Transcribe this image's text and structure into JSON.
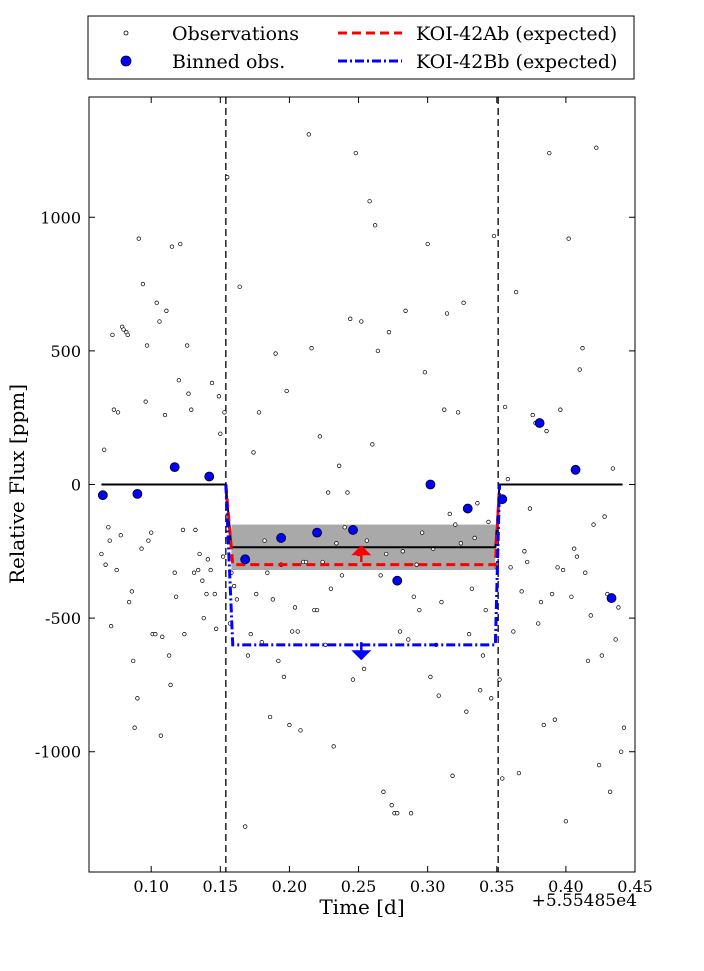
{
  "chart_data": {
    "type": "scatter",
    "title": "",
    "xlabel": "Time [d]",
    "ylabel": "Relative Flux [ppm]",
    "x_offset_label": "+5.55485e4",
    "xlim": [
      0.055,
      0.45
    ],
    "ylim": [
      -1450,
      1450
    ],
    "xticks": [
      0.1,
      0.15,
      0.2,
      0.25,
      0.3,
      0.35,
      0.4,
      0.45
    ],
    "xtick_labels": [
      "0.10",
      "0.15",
      "0.20",
      "0.25",
      "0.30",
      "0.35",
      "0.40",
      "0.45"
    ],
    "yticks": [
      1000,
      500,
      0,
      -500,
      -1000
    ],
    "ytick_labels": [
      "1000",
      "500",
      "0",
      "-500",
      "-1000"
    ],
    "grid": false,
    "legend_position": "top, above plot",
    "legend": [
      {
        "label": "Observations",
        "marker": "open-circle-small"
      },
      {
        "label": "Binned obs.",
        "marker": "filled-circle-blue"
      },
      {
        "label": "KOI-42Ab (expected)",
        "style": "dashed",
        "color": "#ff0000"
      },
      {
        "label": "KOI-42Bb (expected)",
        "style": "dash-dot",
        "color": "#0000ff"
      }
    ],
    "transit_window": [
      0.154,
      0.351
    ],
    "observations": [
      [
        0.064,
        -260
      ],
      [
        0.066,
        130
      ],
      [
        0.067,
        -300
      ],
      [
        0.069,
        -160
      ],
      [
        0.07,
        -210
      ],
      [
        0.071,
        -530
      ],
      [
        0.072,
        560
      ],
      [
        0.073,
        280
      ],
      [
        0.075,
        -320
      ],
      [
        0.076,
        270
      ],
      [
        0.078,
        -190
      ],
      [
        0.079,
        590
      ],
      [
        0.08,
        580
      ],
      [
        0.082,
        570
      ],
      [
        0.083,
        560
      ],
      [
        0.084,
        -440
      ],
      [
        0.086,
        -400
      ],
      [
        0.087,
        -660
      ],
      [
        0.088,
        -910
      ],
      [
        0.09,
        -800
      ],
      [
        0.091,
        920
      ],
      [
        0.093,
        -240
      ],
      [
        0.094,
        750
      ],
      [
        0.096,
        310
      ],
      [
        0.097,
        520
      ],
      [
        0.098,
        -210
      ],
      [
        0.1,
        -180
      ],
      [
        0.101,
        -560
      ],
      [
        0.103,
        -560
      ],
      [
        0.104,
        680
      ],
      [
        0.106,
        610
      ],
      [
        0.107,
        -940
      ],
      [
        0.108,
        -570
      ],
      [
        0.11,
        260
      ],
      [
        0.111,
        650
      ],
      [
        0.113,
        -640
      ],
      [
        0.114,
        -750
      ],
      [
        0.115,
        890
      ],
      [
        0.117,
        -330
      ],
      [
        0.118,
        -420
      ],
      [
        0.12,
        390
      ],
      [
        0.121,
        900
      ],
      [
        0.123,
        -170
      ],
      [
        0.124,
        -560
      ],
      [
        0.126,
        520
      ],
      [
        0.127,
        340
      ],
      [
        0.129,
        280
      ],
      [
        0.131,
        -330
      ],
      [
        0.132,
        -170
      ],
      [
        0.134,
        -320
      ],
      [
        0.135,
        -260
      ],
      [
        0.137,
        -360
      ],
      [
        0.138,
        -500
      ],
      [
        0.14,
        -410
      ],
      [
        0.141,
        -280
      ],
      [
        0.143,
        -320
      ],
      [
        0.144,
        380
      ],
      [
        0.146,
        -410
      ],
      [
        0.147,
        -540
      ],
      [
        0.149,
        330
      ],
      [
        0.15,
        190
      ],
      [
        0.152,
        -270
      ],
      [
        0.153,
        270
      ],
      [
        0.155,
        1150
      ],
      [
        0.157,
        -520
      ],
      [
        0.158,
        -330
      ],
      [
        0.16,
        -380
      ],
      [
        0.162,
        -430
      ],
      [
        0.164,
        740
      ],
      [
        0.166,
        -280
      ],
      [
        0.168,
        -1280
      ],
      [
        0.17,
        -640
      ],
      [
        0.172,
        -560
      ],
      [
        0.174,
        120
      ],
      [
        0.176,
        -410
      ],
      [
        0.178,
        270
      ],
      [
        0.18,
        -590
      ],
      [
        0.182,
        -210
      ],
      [
        0.184,
        -330
      ],
      [
        0.186,
        -870
      ],
      [
        0.188,
        -430
      ],
      [
        0.19,
        490
      ],
      [
        0.192,
        -660
      ],
      [
        0.194,
        -300
      ],
      [
        0.196,
        -720
      ],
      [
        0.198,
        350
      ],
      [
        0.2,
        -900
      ],
      [
        0.202,
        -550
      ],
      [
        0.204,
        -460
      ],
      [
        0.206,
        -550
      ],
      [
        0.208,
        -920
      ],
      [
        0.21,
        -290
      ],
      [
        0.212,
        -290
      ],
      [
        0.214,
        1310
      ],
      [
        0.216,
        510
      ],
      [
        0.218,
        -470
      ],
      [
        0.22,
        -470
      ],
      [
        0.222,
        180
      ],
      [
        0.224,
        -290
      ],
      [
        0.226,
        -600
      ],
      [
        0.228,
        -30
      ],
      [
        0.23,
        -390
      ],
      [
        0.232,
        -980
      ],
      [
        0.234,
        -220
      ],
      [
        0.236,
        70
      ],
      [
        0.238,
        -340
      ],
      [
        0.24,
        -160
      ],
      [
        0.242,
        -30
      ],
      [
        0.244,
        620
      ],
      [
        0.246,
        -730
      ],
      [
        0.248,
        1240
      ],
      [
        0.25,
        -260
      ],
      [
        0.252,
        610
      ],
      [
        0.254,
        -690
      ],
      [
        0.256,
        -210
      ],
      [
        0.258,
        1060
      ],
      [
        0.26,
        150
      ],
      [
        0.262,
        970
      ],
      [
        0.264,
        500
      ],
      [
        0.266,
        -340
      ],
      [
        0.268,
        -1150
      ],
      [
        0.27,
        -260
      ],
      [
        0.272,
        570
      ],
      [
        0.274,
        -1200
      ],
      [
        0.276,
        -1230
      ],
      [
        0.278,
        -1230
      ],
      [
        0.28,
        -550
      ],
      [
        0.282,
        -250
      ],
      [
        0.284,
        650
      ],
      [
        0.286,
        -580
      ],
      [
        0.288,
        -1230
      ],
      [
        0.29,
        -420
      ],
      [
        0.292,
        -300
      ],
      [
        0.294,
        -470
      ],
      [
        0.296,
        -180
      ],
      [
        0.298,
        420
      ],
      [
        0.3,
        900
      ],
      [
        0.302,
        -720
      ],
      [
        0.304,
        -240
      ],
      [
        0.306,
        -600
      ],
      [
        0.308,
        -790
      ],
      [
        0.31,
        -440
      ],
      [
        0.312,
        280
      ],
      [
        0.314,
        640
      ],
      [
        0.316,
        -110
      ],
      [
        0.318,
        -1090
      ],
      [
        0.32,
        -150
      ],
      [
        0.322,
        270
      ],
      [
        0.324,
        -220
      ],
      [
        0.326,
        680
      ],
      [
        0.328,
        -850
      ],
      [
        0.33,
        -560
      ],
      [
        0.332,
        -390
      ],
      [
        0.334,
        -200
      ],
      [
        0.336,
        -70
      ],
      [
        0.338,
        -770
      ],
      [
        0.34,
        -640
      ],
      [
        0.342,
        -470
      ],
      [
        0.344,
        -140
      ],
      [
        0.346,
        -800
      ],
      [
        0.348,
        930
      ],
      [
        0.35,
        -310
      ],
      [
        0.352,
        -730
      ],
      [
        0.354,
        -1100
      ],
      [
        0.356,
        290
      ],
      [
        0.358,
        20
      ],
      [
        0.36,
        -310
      ],
      [
        0.362,
        -550
      ],
      [
        0.364,
        720
      ],
      [
        0.366,
        -1080
      ],
      [
        0.368,
        -400
      ],
      [
        0.37,
        -250
      ],
      [
        0.372,
        -290
      ],
      [
        0.374,
        -90
      ],
      [
        0.376,
        260
      ],
      [
        0.378,
        230
      ],
      [
        0.38,
        -520
      ],
      [
        0.382,
        -440
      ],
      [
        0.384,
        -900
      ],
      [
        0.386,
        200
      ],
      [
        0.388,
        1240
      ],
      [
        0.39,
        -410
      ],
      [
        0.392,
        -880
      ],
      [
        0.394,
        -310
      ],
      [
        0.396,
        280
      ],
      [
        0.398,
        -320
      ],
      [
        0.4,
        -1260
      ],
      [
        0.402,
        920
      ],
      [
        0.404,
        -420
      ],
      [
        0.406,
        -240
      ],
      [
        0.408,
        -270
      ],
      [
        0.41,
        430
      ],
      [
        0.412,
        510
      ],
      [
        0.414,
        -330
      ],
      [
        0.416,
        -660
      ],
      [
        0.418,
        -490
      ],
      [
        0.42,
        -150
      ],
      [
        0.422,
        1260
      ],
      [
        0.424,
        -1050
      ],
      [
        0.426,
        -640
      ],
      [
        0.428,
        -120
      ],
      [
        0.43,
        -410
      ],
      [
        0.432,
        -1150
      ],
      [
        0.434,
        60
      ],
      [
        0.436,
        -580
      ],
      [
        0.438,
        -460
      ],
      [
        0.44,
        -1000
      ],
      [
        0.442,
        -910
      ]
    ],
    "binned_obs": [
      [
        0.065,
        -40
      ],
      [
        0.09,
        -35
      ],
      [
        0.117,
        65
      ],
      [
        0.142,
        30
      ],
      [
        0.168,
        -280
      ],
      [
        0.194,
        -200
      ],
      [
        0.22,
        -180
      ],
      [
        0.246,
        -170
      ],
      [
        0.278,
        -360
      ],
      [
        0.302,
        0
      ],
      [
        0.329,
        -90
      ],
      [
        0.354,
        -55
      ],
      [
        0.381,
        230
      ],
      [
        0.407,
        55
      ],
      [
        0.433,
        -425
      ]
    ],
    "model_fit": {
      "x": [
        0.064,
        0.154,
        0.158,
        0.349,
        0.352,
        0.441
      ],
      "y": [
        0,
        0,
        -235,
        -235,
        0,
        0
      ],
      "band": [
        -150,
        -320
      ]
    },
    "series": [
      {
        "name": "KOI-42Ab (expected)",
        "color": "#ff0000",
        "x": [
          0.154,
          0.159,
          0.349,
          0.352
        ],
        "y": [
          0,
          -300,
          -300,
          0
        ]
      },
      {
        "name": "KOI-42Bb (expected)",
        "color": "#0000ff",
        "x": [
          0.154,
          0.159,
          0.349,
          0.352
        ],
        "y": [
          0,
          -600,
          -600,
          0
        ]
      }
    ],
    "arrows": [
      {
        "color": "#ff0000",
        "x": 0.252,
        "from": -290,
        "to": -235
      },
      {
        "color": "#0000ff",
        "x": 0.252,
        "from": -590,
        "to": -650
      }
    ]
  }
}
